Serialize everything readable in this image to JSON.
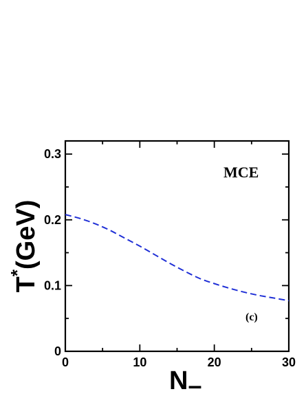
{
  "chart_data": {
    "type": "line",
    "xlabel": "N",
    "xlabel_subscript": "–",
    "ylabel": "T",
    "ylabel_superscript": "*",
    "ylabel_unit": "(GeV)",
    "xlim": [
      0,
      30
    ],
    "ylim": [
      0,
      0.32
    ],
    "x_ticks": [
      0,
      10,
      20,
      30
    ],
    "x_tick_labels": [
      "0",
      "10",
      "20",
      "30"
    ],
    "y_ticks": [
      0,
      0.1,
      0.2,
      0.3
    ],
    "y_tick_labels": [
      "0",
      "0.1",
      "0.2",
      "0.3"
    ],
    "grid": false,
    "annotations": [
      "MCE",
      "(c)"
    ],
    "series": [
      {
        "style": "dashed",
        "color": "#1f2fd6",
        "x": [
          0,
          2,
          4,
          6,
          8,
          10,
          12,
          14,
          16,
          18,
          20,
          22,
          24,
          26,
          28,
          30
        ],
        "y": [
          0.208,
          0.202,
          0.194,
          0.184,
          0.172,
          0.16,
          0.147,
          0.134,
          0.122,
          0.111,
          0.103,
          0.096,
          0.09,
          0.085,
          0.081,
          0.077
        ]
      }
    ]
  }
}
